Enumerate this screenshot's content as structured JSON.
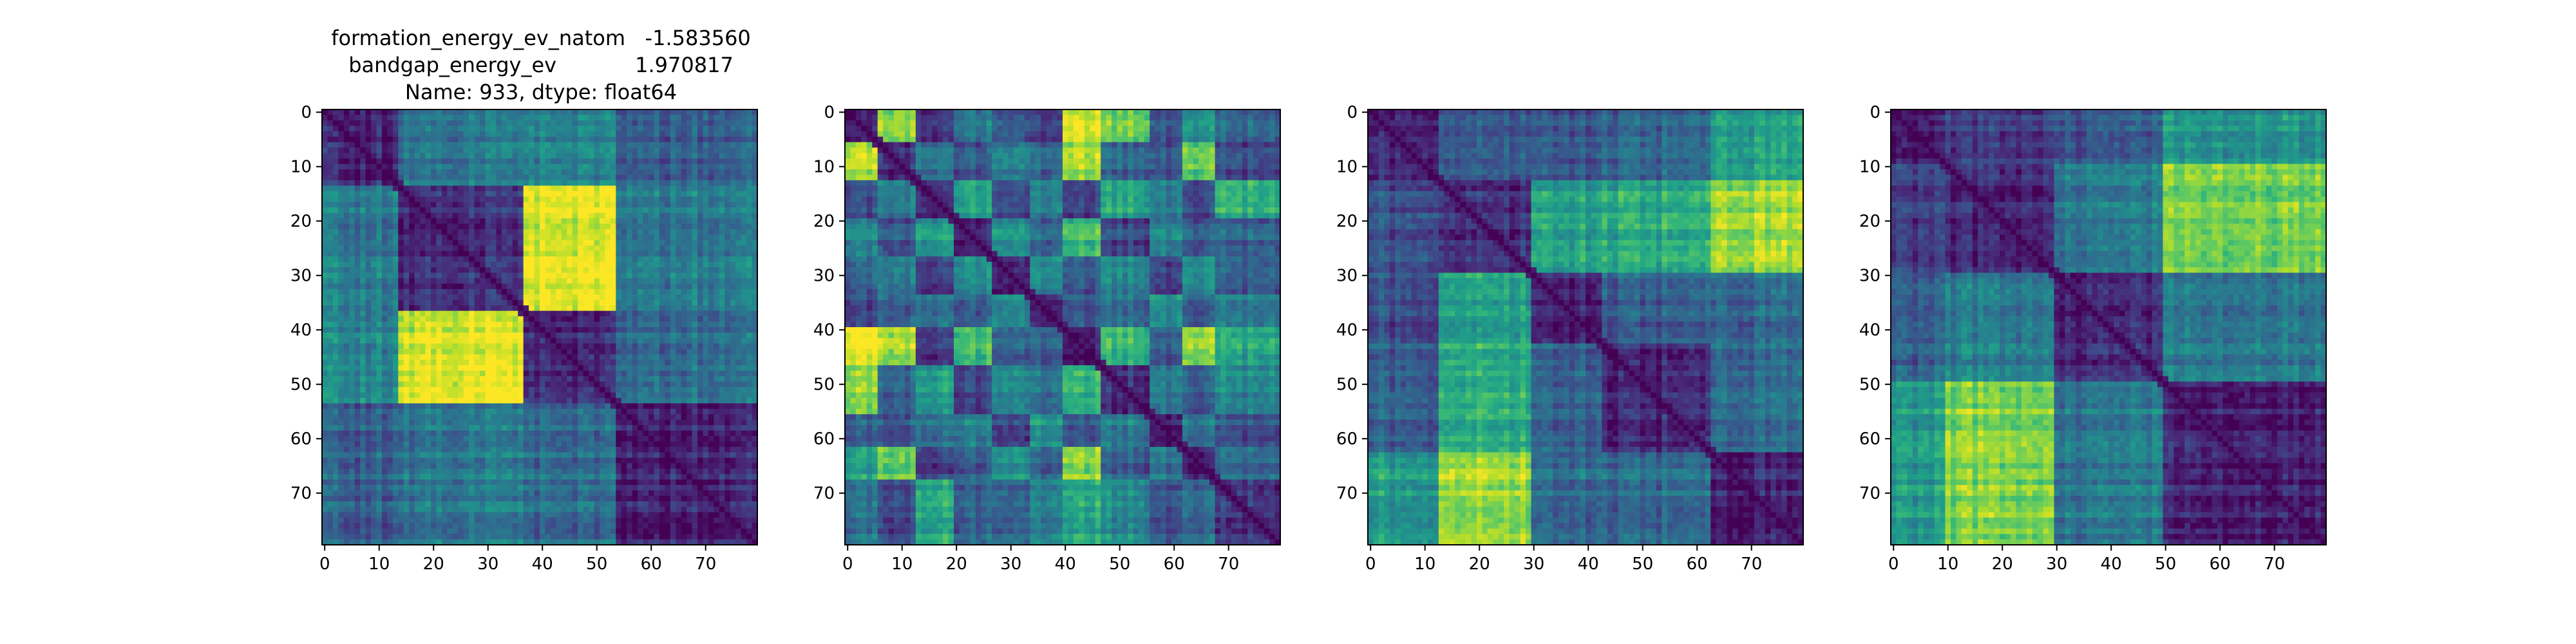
{
  "title": {
    "line1": "formation_energy_ev_natom   -1.583560",
    "line2": "bandgap_energy_ev            1.970817",
    "line3": "Name: 933, dtype: float64"
  },
  "chart_data": [
    {
      "type": "heatmap",
      "title": "formation_energy_ev_natom   -1.583560\nbandgap_energy_ev            1.970817\nName: 933, dtype: float64",
      "size": 80,
      "colormap": "viridis",
      "xlabel": "",
      "ylabel": "",
      "xticks": [
        0,
        10,
        20,
        30,
        40,
        50,
        60,
        70
      ],
      "yticks": [
        0,
        10,
        20,
        30,
        40,
        50,
        60,
        70
      ],
      "blocks": [
        0,
        14,
        37,
        54,
        80
      ],
      "block_values": [
        [
          0.1,
          0.4,
          0.45,
          0.3
        ],
        [
          0.4,
          0.12,
          0.95,
          0.4
        ],
        [
          0.45,
          0.95,
          0.12,
          0.35
        ],
        [
          0.3,
          0.4,
          0.35,
          0.1
        ]
      ]
    },
    {
      "type": "heatmap",
      "title": "",
      "size": 80,
      "colormap": "viridis",
      "xlabel": "",
      "ylabel": "",
      "xticks": [
        0,
        10,
        20,
        30,
        40,
        50,
        60,
        70
      ],
      "yticks": [
        0,
        10,
        20,
        30,
        40,
        50,
        60,
        70
      ],
      "blocks": [
        0,
        6,
        13,
        20,
        27,
        34,
        40,
        47,
        56,
        62,
        68,
        80
      ],
      "block_values": [
        [
          0.1,
          0.85,
          0.2,
          0.45,
          0.3,
          0.2,
          1.0,
          0.8,
          0.3,
          0.55,
          0.35
        ],
        [
          0.85,
          0.1,
          0.4,
          0.25,
          0.4,
          0.3,
          0.85,
          0.3,
          0.25,
          0.75,
          0.2
        ],
        [
          0.2,
          0.4,
          0.12,
          0.55,
          0.2,
          0.4,
          0.2,
          0.55,
          0.4,
          0.2,
          0.6
        ],
        [
          0.45,
          0.25,
          0.55,
          0.12,
          0.5,
          0.3,
          0.7,
          0.2,
          0.45,
          0.3,
          0.3
        ],
        [
          0.3,
          0.4,
          0.2,
          0.5,
          0.1,
          0.45,
          0.3,
          0.45,
          0.2,
          0.5,
          0.3
        ],
        [
          0.2,
          0.3,
          0.4,
          0.3,
          0.45,
          0.1,
          0.3,
          0.35,
          0.5,
          0.3,
          0.4
        ],
        [
          1.0,
          0.85,
          0.2,
          0.7,
          0.3,
          0.3,
          0.1,
          0.65,
          0.3,
          0.85,
          0.6
        ],
        [
          0.8,
          0.3,
          0.55,
          0.2,
          0.45,
          0.35,
          0.65,
          0.12,
          0.4,
          0.3,
          0.45
        ],
        [
          0.3,
          0.25,
          0.4,
          0.45,
          0.2,
          0.5,
          0.3,
          0.4,
          0.1,
          0.4,
          0.25
        ],
        [
          0.55,
          0.75,
          0.2,
          0.3,
          0.5,
          0.3,
          0.85,
          0.3,
          0.4,
          0.1,
          0.35
        ],
        [
          0.35,
          0.2,
          0.6,
          0.3,
          0.3,
          0.4,
          0.6,
          0.45,
          0.25,
          0.35,
          0.12
        ]
      ]
    },
    {
      "type": "heatmap",
      "title": "",
      "size": 80,
      "colormap": "viridis",
      "xlabel": "",
      "ylabel": "",
      "xticks": [
        0,
        10,
        20,
        30,
        40,
        50,
        60,
        70
      ],
      "yticks": [
        0,
        10,
        20,
        30,
        40,
        50,
        60,
        70
      ],
      "blocks": [
        0,
        13,
        30,
        43,
        63,
        80
      ],
      "block_values": [
        [
          0.1,
          0.25,
          0.25,
          0.3,
          0.55
        ],
        [
          0.25,
          0.12,
          0.55,
          0.6,
          0.85
        ],
        [
          0.25,
          0.55,
          0.1,
          0.3,
          0.35
        ],
        [
          0.3,
          0.6,
          0.3,
          0.1,
          0.35
        ],
        [
          0.55,
          0.85,
          0.35,
          0.35,
          0.1
        ]
      ]
    },
    {
      "type": "heatmap",
      "title": "",
      "size": 80,
      "colormap": "viridis",
      "xlabel": "",
      "ylabel": "",
      "xticks": [
        0,
        10,
        20,
        30,
        40,
        50,
        60,
        70
      ],
      "yticks": [
        0,
        10,
        20,
        30,
        40,
        50,
        60,
        70
      ],
      "blocks": [
        0,
        10,
        30,
        50,
        80
      ],
      "block_values": [
        [
          0.1,
          0.2,
          0.3,
          0.55
        ],
        [
          0.2,
          0.1,
          0.4,
          0.8
        ],
        [
          0.3,
          0.4,
          0.1,
          0.4
        ],
        [
          0.55,
          0.8,
          0.4,
          0.1
        ]
      ]
    }
  ]
}
